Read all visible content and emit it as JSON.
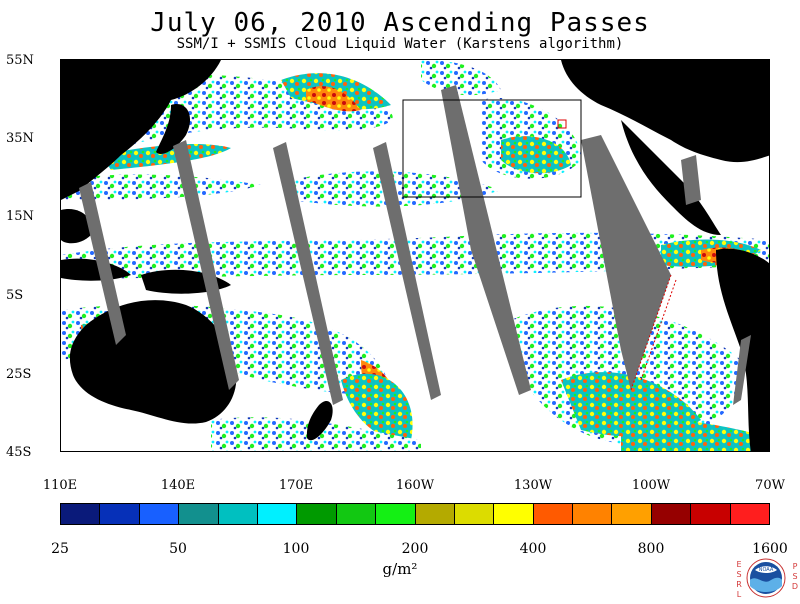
{
  "header": {
    "title": "July 06, 2010  Ascending Passes",
    "subtitle": "SSM/I + SSMIS Cloud Liquid Water (Karstens algorithm)"
  },
  "map": {
    "lat_labels": [
      "55N",
      "35N",
      "15N",
      "5S",
      "25S",
      "45S"
    ],
    "lon_labels": [
      "110E",
      "140E",
      "170E",
      "160W",
      "130W",
      "100W",
      "70W"
    ],
    "lat_range": [
      -45,
      55
    ],
    "lon_range": [
      "110E",
      "70W"
    ],
    "land_color": "#000000",
    "no_data_swath_color": "#6e6e6e",
    "inset_box": {
      "label": ""
    }
  },
  "colorbar": {
    "colors": [
      "#0a1a7a",
      "#0630b8",
      "#1860ff",
      "#12908e",
      "#00c0c0",
      "#00f0ff",
      "#009a00",
      "#12c812",
      "#14f014",
      "#b4aa00",
      "#dcdc00",
      "#ffff00",
      "#ff5a00",
      "#ff8200",
      "#ffa000",
      "#960000",
      "#c80000",
      "#ff1e1e"
    ],
    "tick_labels": [
      "25",
      "50",
      "100",
      "200",
      "400",
      "800",
      "1600"
    ],
    "units": "g/m²"
  },
  "logo": {
    "left_letters": "ESRL",
    "right_letters": "PSD",
    "name": "noaa-logo"
  }
}
